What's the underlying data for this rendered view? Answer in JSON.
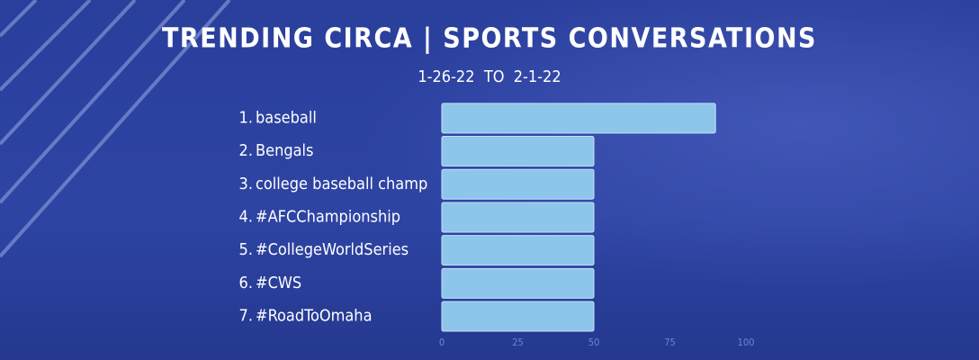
{
  "chart_data": {
    "type": "barh",
    "title": "TRENDING CIRCA | SPORTS CONVERSATIONS",
    "subtitle": "1-26-22  TO  2-1-22",
    "ranks": [
      "1.",
      "2.",
      "3.",
      "4.",
      "5.",
      "6.",
      "7."
    ],
    "categories": [
      "baseball",
      "Bengals",
      "college baseball champ",
      "#AFCChampionship",
      "#CollegeWorldSeries",
      "#CWS",
      "#RoadToOmaha"
    ],
    "values": [
      90,
      50,
      50,
      50,
      50,
      50,
      50
    ],
    "color": "#8ec5ea",
    "xlim": [
      0,
      100
    ],
    "xticks": [
      0,
      25,
      50,
      75,
      100
    ]
  }
}
